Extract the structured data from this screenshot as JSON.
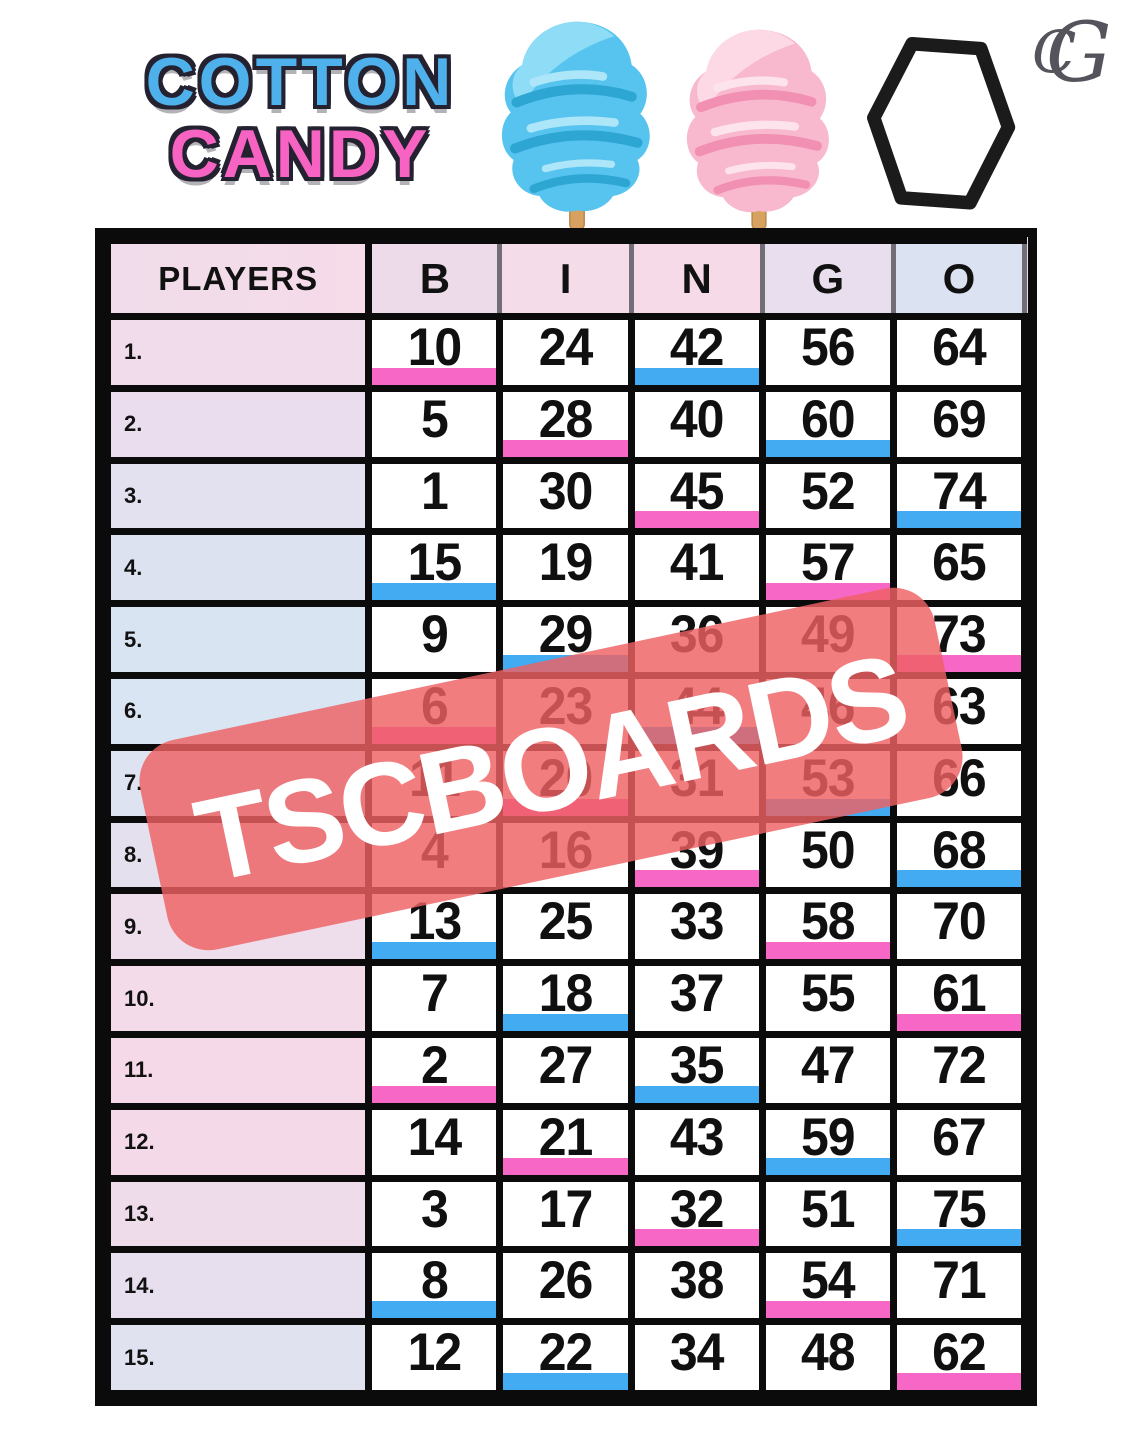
{
  "header": {
    "title_line1": "COTTON",
    "title_line2": "CANDY",
    "monogram_c": "C",
    "monogram_g": "G"
  },
  "watermark": {
    "text": "TSCBOARDS"
  },
  "colors": {
    "title_blue": "#4fb1ec",
    "title_pink": "#f763c2",
    "pink_bar": "#f767c6",
    "blue_bar": "#42abf2",
    "watermark_red": "#ee6063"
  },
  "icons": {
    "blue_cotton_candy": "blue-cotton-candy-icon",
    "pink_cotton_candy": "pink-cotton-candy-icon",
    "hexagon": "hexagon-outline-icon",
    "monogram": "cg-monogram-icon"
  },
  "board": {
    "players_header": "PLAYERS",
    "letters": [
      "B",
      "I",
      "N",
      "G",
      "O"
    ],
    "rows": [
      {
        "label": "1.",
        "cells": [
          {
            "n": "10",
            "bar": "pink"
          },
          {
            "n": "24",
            "bar": null
          },
          {
            "n": "42",
            "bar": "blue"
          },
          {
            "n": "56",
            "bar": null
          },
          {
            "n": "64",
            "bar": null
          }
        ]
      },
      {
        "label": "2.",
        "cells": [
          {
            "n": "5",
            "bar": null
          },
          {
            "n": "28",
            "bar": "pink"
          },
          {
            "n": "40",
            "bar": null
          },
          {
            "n": "60",
            "bar": "blue"
          },
          {
            "n": "69",
            "bar": null
          }
        ]
      },
      {
        "label": "3.",
        "cells": [
          {
            "n": "1",
            "bar": null
          },
          {
            "n": "30",
            "bar": null
          },
          {
            "n": "45",
            "bar": "pink"
          },
          {
            "n": "52",
            "bar": null
          },
          {
            "n": "74",
            "bar": "blue"
          }
        ]
      },
      {
        "label": "4.",
        "cells": [
          {
            "n": "15",
            "bar": "blue"
          },
          {
            "n": "19",
            "bar": null
          },
          {
            "n": "41",
            "bar": null
          },
          {
            "n": "57",
            "bar": "pink"
          },
          {
            "n": "65",
            "bar": null
          }
        ]
      },
      {
        "label": "5.",
        "cells": [
          {
            "n": "9",
            "bar": null
          },
          {
            "n": "29",
            "bar": "blue"
          },
          {
            "n": "36",
            "bar": null
          },
          {
            "n": "49",
            "bar": null
          },
          {
            "n": "73",
            "bar": "pink"
          }
        ]
      },
      {
        "label": "6.",
        "cells": [
          {
            "n": "6",
            "bar": "pink"
          },
          {
            "n": "23",
            "bar": null
          },
          {
            "n": "44",
            "bar": "blue"
          },
          {
            "n": "46",
            "bar": null
          },
          {
            "n": "63",
            "bar": null
          }
        ]
      },
      {
        "label": "7.",
        "cells": [
          {
            "n": "11",
            "bar": null
          },
          {
            "n": "20",
            "bar": "pink"
          },
          {
            "n": "31",
            "bar": null
          },
          {
            "n": "53",
            "bar": "blue"
          },
          {
            "n": "66",
            "bar": null
          }
        ]
      },
      {
        "label": "8.",
        "cells": [
          {
            "n": "4",
            "bar": null
          },
          {
            "n": "16",
            "bar": null
          },
          {
            "n": "39",
            "bar": "pink"
          },
          {
            "n": "50",
            "bar": null
          },
          {
            "n": "68",
            "bar": "blue"
          }
        ]
      },
      {
        "label": "9.",
        "cells": [
          {
            "n": "13",
            "bar": "blue"
          },
          {
            "n": "25",
            "bar": null
          },
          {
            "n": "33",
            "bar": null
          },
          {
            "n": "58",
            "bar": "pink"
          },
          {
            "n": "70",
            "bar": null
          }
        ]
      },
      {
        "label": "10.",
        "cells": [
          {
            "n": "7",
            "bar": null
          },
          {
            "n": "18",
            "bar": "blue"
          },
          {
            "n": "37",
            "bar": null
          },
          {
            "n": "55",
            "bar": null
          },
          {
            "n": "61",
            "bar": "pink"
          }
        ]
      },
      {
        "label": "11.",
        "cells": [
          {
            "n": "2",
            "bar": "pink"
          },
          {
            "n": "27",
            "bar": null
          },
          {
            "n": "35",
            "bar": "blue"
          },
          {
            "n": "47",
            "bar": null
          },
          {
            "n": "72",
            "bar": null
          }
        ]
      },
      {
        "label": "12.",
        "cells": [
          {
            "n": "14",
            "bar": null
          },
          {
            "n": "21",
            "bar": "pink"
          },
          {
            "n": "43",
            "bar": null
          },
          {
            "n": "59",
            "bar": "blue"
          },
          {
            "n": "67",
            "bar": null
          }
        ]
      },
      {
        "label": "13.",
        "cells": [
          {
            "n": "3",
            "bar": null
          },
          {
            "n": "17",
            "bar": null
          },
          {
            "n": "32",
            "bar": "pink"
          },
          {
            "n": "51",
            "bar": null
          },
          {
            "n": "75",
            "bar": "blue"
          }
        ]
      },
      {
        "label": "14.",
        "cells": [
          {
            "n": "8",
            "bar": "blue"
          },
          {
            "n": "26",
            "bar": null
          },
          {
            "n": "38",
            "bar": null
          },
          {
            "n": "54",
            "bar": "pink"
          },
          {
            "n": "71",
            "bar": null
          }
        ]
      },
      {
        "label": "15.",
        "cells": [
          {
            "n": "12",
            "bar": null
          },
          {
            "n": "22",
            "bar": "blue"
          },
          {
            "n": "34",
            "bar": null
          },
          {
            "n": "48",
            "bar": null
          },
          {
            "n": "62",
            "bar": "pink"
          }
        ]
      }
    ]
  }
}
